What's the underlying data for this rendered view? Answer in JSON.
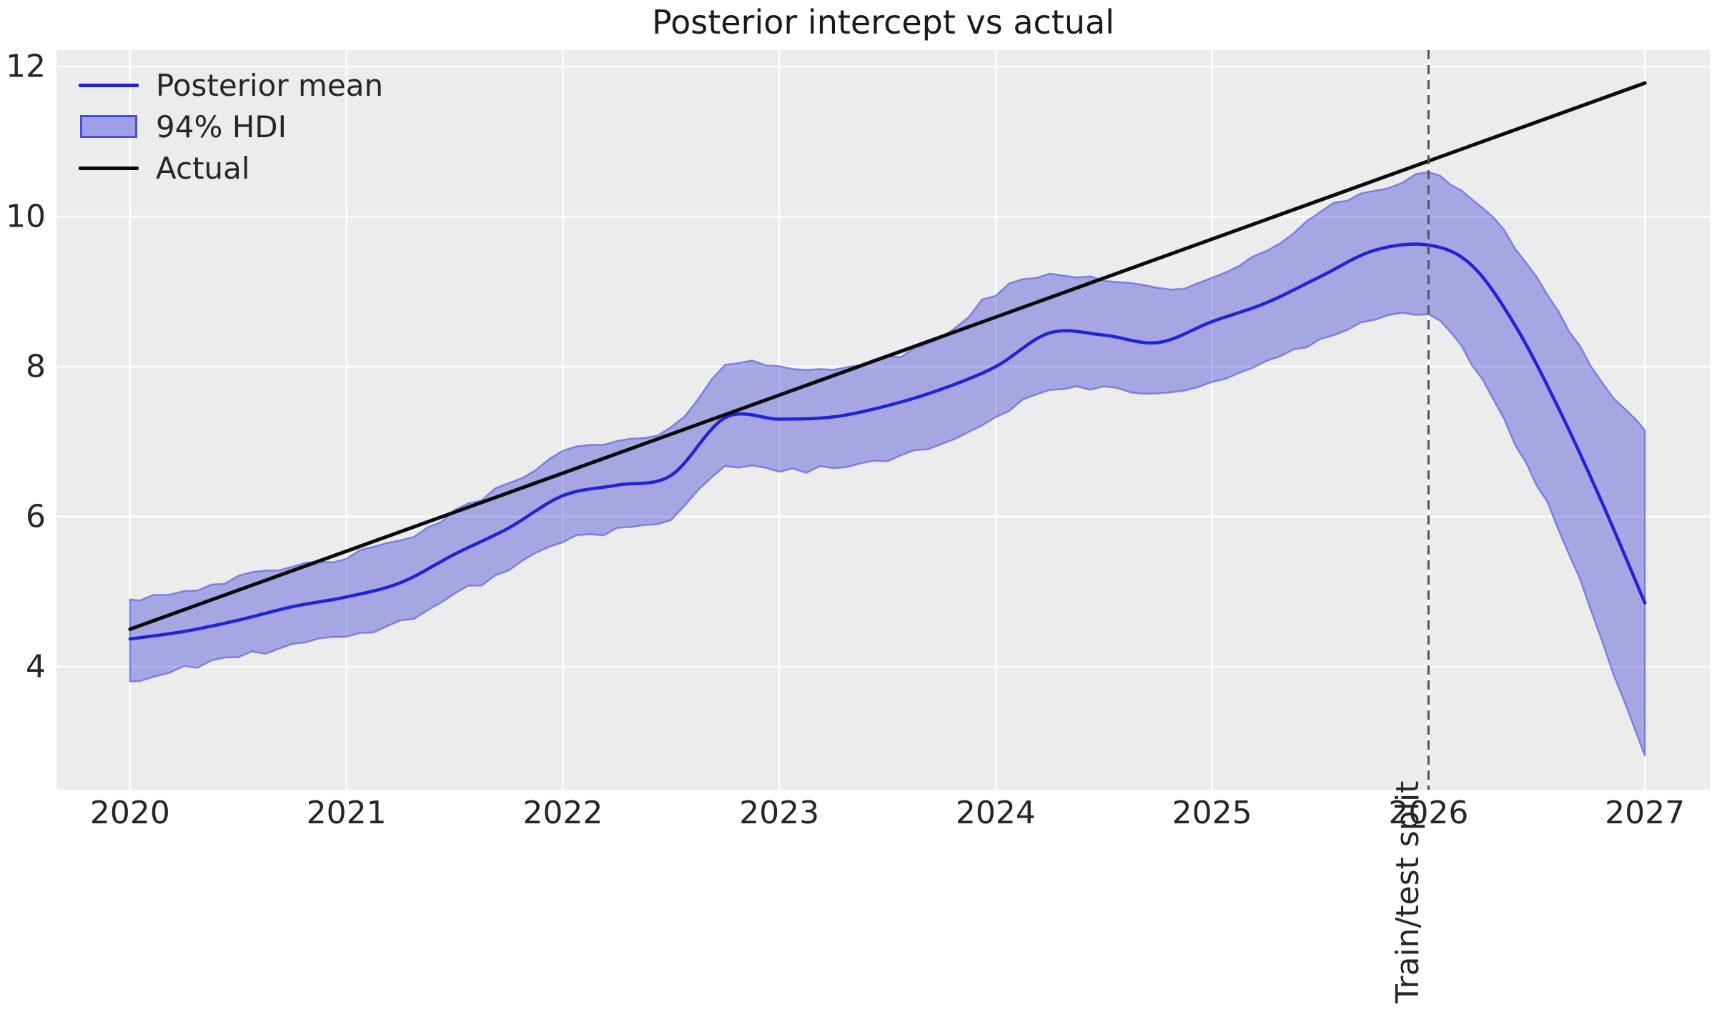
{
  "figure": {
    "title": "Posterior intercept vs actual"
  },
  "legend": {
    "items": [
      {
        "label": "Posterior mean",
        "swatch": "line",
        "color": "#2222d6"
      },
      {
        "label": "94% HDI",
        "swatch": "patch",
        "color": "#a0a0e8",
        "edge_color": "#4c4cd9"
      },
      {
        "label": "Actual",
        "swatch": "line",
        "color": "#0a0a0a"
      }
    ]
  },
  "annotations": {
    "train_test_split_label": "Train/test split",
    "train_test_split_x": 2026
  },
  "colors": {
    "mean_line": "#2222d6",
    "hdi_fill": "#2d2dd2",
    "hdi_fill_alpha": 0.37,
    "hdi_edge": "#4646dc",
    "hdi_edge_alpha": 0.55,
    "actual_line": "#0a0a0a",
    "split_line": "#555555",
    "plot_bg": "#ececec",
    "grid": "#ffffff",
    "tick_text": "#262626"
  },
  "chart_data": {
    "type": "line",
    "title": "Posterior intercept vs actual",
    "xlabel": "",
    "ylabel": "",
    "grid": true,
    "legend_position": "upper left",
    "xlim": [
      2019.66,
      2027.3
    ],
    "ylim": [
      2.36,
      12.22
    ],
    "x_tick_values": [
      2020,
      2021,
      2022,
      2023,
      2024,
      2025,
      2026,
      2027
    ],
    "x_tick_labels": [
      "2020",
      "2021",
      "2022",
      "2023",
      "2024",
      "2025",
      "2026",
      "2027"
    ],
    "y_tick_values": [
      4,
      6,
      8,
      10,
      12
    ],
    "y_tick_labels": [
      "4",
      "6",
      "8",
      "10",
      "12"
    ],
    "split_x": 2026,
    "series": [
      {
        "name": "Actual",
        "type": "line",
        "x": [
          2020,
          2027
        ],
        "y": [
          4.5,
          11.78
        ]
      },
      {
        "name": "Posterior mean",
        "type": "line",
        "x": [
          2020,
          2020.25,
          2020.5,
          2020.75,
          2021,
          2021.25,
          2021.5,
          2021.75,
          2022,
          2022.25,
          2022.5,
          2022.75,
          2023,
          2023.25,
          2023.5,
          2023.75,
          2024,
          2024.25,
          2024.5,
          2024.75,
          2025,
          2025.25,
          2025.5,
          2025.75,
          2026,
          2026.2,
          2026.4,
          2026.6,
          2026.8,
          2027
        ],
        "y": [
          4.37,
          4.47,
          4.62,
          4.8,
          4.93,
          5.12,
          5.5,
          5.85,
          6.28,
          6.42,
          6.55,
          7.32,
          7.3,
          7.33,
          7.48,
          7.7,
          8.0,
          8.45,
          8.42,
          8.32,
          8.6,
          8.85,
          9.2,
          9.55,
          9.62,
          9.35,
          8.55,
          7.45,
          6.2,
          4.85
        ]
      },
      {
        "name": "94% HDI",
        "type": "band",
        "x": [
          2020,
          2020.25,
          2020.5,
          2020.75,
          2021,
          2021.25,
          2021.5,
          2021.75,
          2022,
          2022.25,
          2022.5,
          2022.75,
          2023,
          2023.25,
          2023.5,
          2023.75,
          2024,
          2024.25,
          2024.5,
          2024.75,
          2025,
          2025.25,
          2025.5,
          2025.75,
          2026,
          2026.2,
          2026.4,
          2026.6,
          2026.8,
          2027
        ],
        "lo": [
          3.8,
          3.97,
          4.12,
          4.3,
          4.38,
          4.6,
          4.95,
          5.3,
          5.68,
          5.82,
          5.95,
          6.65,
          6.62,
          6.65,
          6.78,
          7.0,
          7.32,
          7.68,
          7.7,
          7.62,
          7.82,
          8.05,
          8.35,
          8.62,
          8.67,
          8.05,
          7.0,
          5.85,
          4.35,
          2.8
        ],
        "hi": [
          4.9,
          5.02,
          5.18,
          5.32,
          5.47,
          5.68,
          6.05,
          6.45,
          6.85,
          7.0,
          7.15,
          8.03,
          7.98,
          8.0,
          8.1,
          8.4,
          8.98,
          9.22,
          9.18,
          9.05,
          9.15,
          9.55,
          10.05,
          10.35,
          10.55,
          10.25,
          9.6,
          8.75,
          7.8,
          7.15
        ]
      }
    ]
  }
}
